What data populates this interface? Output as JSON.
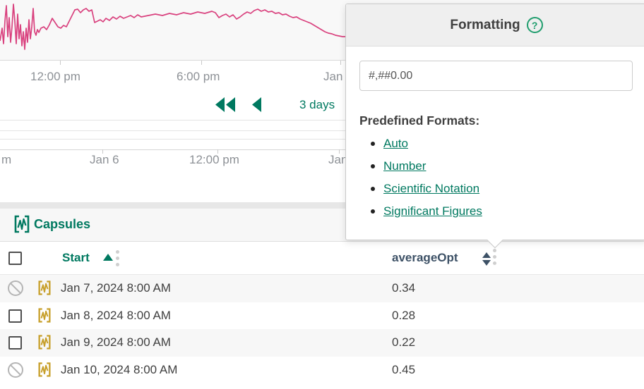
{
  "colors": {
    "trend": "#d9417e",
    "accent_green": "#007960",
    "slate": "#3d5166",
    "gold": "#c79f2a"
  },
  "trend": {
    "points": [
      [
        0,
        58
      ],
      [
        3,
        40
      ],
      [
        5,
        62
      ],
      [
        7,
        30
      ],
      [
        9,
        8
      ],
      [
        11,
        52
      ],
      [
        13,
        25
      ],
      [
        15,
        60
      ],
      [
        17,
        38
      ],
      [
        19,
        6
      ],
      [
        21,
        30
      ],
      [
        23,
        62
      ],
      [
        25,
        20
      ],
      [
        27,
        55
      ],
      [
        29,
        35
      ],
      [
        31,
        65
      ],
      [
        33,
        45
      ],
      [
        35,
        70
      ],
      [
        37,
        40
      ],
      [
        39,
        60
      ],
      [
        41,
        28
      ],
      [
        43,
        55
      ],
      [
        45,
        38
      ],
      [
        47,
        12
      ],
      [
        49,
        45
      ],
      [
        51,
        50
      ],
      [
        53,
        42
      ],
      [
        55,
        46
      ],
      [
        58,
        40
      ],
      [
        62,
        38
      ],
      [
        66,
        42
      ],
      [
        70,
        35
      ],
      [
        74,
        26
      ],
      [
        78,
        32
      ],
      [
        82,
        38
      ],
      [
        86,
        40
      ],
      [
        90,
        36
      ],
      [
        94,
        38
      ],
      [
        98,
        30
      ],
      [
        102,
        22
      ],
      [
        106,
        14
      ],
      [
        110,
        13
      ],
      [
        114,
        18
      ],
      [
        118,
        14
      ],
      [
        122,
        12
      ],
      [
        126,
        16
      ],
      [
        130,
        14
      ],
      [
        134,
        32
      ],
      [
        138,
        30
      ],
      [
        142,
        28
      ],
      [
        146,
        31
      ],
      [
        150,
        26
      ],
      [
        155,
        29
      ],
      [
        160,
        24
      ],
      [
        165,
        27
      ],
      [
        170,
        23
      ],
      [
        175,
        26
      ],
      [
        180,
        24
      ],
      [
        185,
        22
      ],
      [
        190,
        25
      ],
      [
        195,
        21
      ],
      [
        200,
        24
      ],
      [
        210,
        22
      ],
      [
        220,
        20
      ],
      [
        230,
        22
      ],
      [
        240,
        19
      ],
      [
        250,
        21
      ],
      [
        260,
        18
      ],
      [
        270,
        20
      ],
      [
        280,
        17
      ],
      [
        290,
        19
      ],
      [
        300,
        16
      ],
      [
        305,
        18
      ],
      [
        310,
        25
      ],
      [
        315,
        22
      ],
      [
        320,
        20
      ],
      [
        325,
        24
      ],
      [
        330,
        21
      ],
      [
        335,
        27
      ],
      [
        340,
        24
      ],
      [
        345,
        20
      ],
      [
        350,
        17
      ],
      [
        355,
        19
      ],
      [
        360,
        15
      ],
      [
        365,
        13
      ],
      [
        370,
        16
      ],
      [
        375,
        14
      ],
      [
        380,
        17
      ],
      [
        385,
        16
      ],
      [
        390,
        19
      ],
      [
        395,
        18
      ],
      [
        400,
        21
      ],
      [
        405,
        20
      ],
      [
        410,
        23
      ],
      [
        415,
        25
      ],
      [
        420,
        24
      ],
      [
        425,
        27
      ],
      [
        430,
        29
      ],
      [
        435,
        31
      ],
      [
        440,
        33
      ],
      [
        445,
        36
      ],
      [
        450,
        39
      ],
      [
        455,
        42
      ],
      [
        460,
        45
      ],
      [
        465,
        47
      ],
      [
        470,
        48
      ],
      [
        475,
        50
      ],
      [
        480,
        51
      ],
      [
        485,
        52
      ],
      [
        489,
        52
      ]
    ]
  },
  "axis1": {
    "labels": [
      {
        "text": "12:00 pm"
      },
      {
        "text": "6:00 pm"
      },
      {
        "text": "Jan"
      }
    ]
  },
  "nav": {
    "range_label": "3 days"
  },
  "axis2": {
    "labels": [
      {
        "text": "m"
      },
      {
        "text": "Jan 6"
      },
      {
        "text": "12:00 pm"
      },
      {
        "text": "Jan"
      }
    ]
  },
  "popup": {
    "title": "Formatting",
    "help_glyph": "?",
    "input_value": "#,##0.00",
    "predefined_heading": "Predefined Formats:",
    "options": [
      "Auto",
      "Number",
      "Scientific Notation",
      "Significant Figures"
    ]
  },
  "capsules": {
    "title": "Capsules",
    "columns": {
      "start": "Start",
      "value": "averageOpt"
    },
    "rows": [
      {
        "start": "Jan 7, 2024 8:00 AM",
        "value": "0.34"
      },
      {
        "start": "Jan 8, 2024 8:00 AM",
        "value": "0.28"
      },
      {
        "start": "Jan 9, 2024 8:00 AM",
        "value": "0.22"
      },
      {
        "start": "Jan 10, 2024 8:00 AM",
        "value": "0.45"
      }
    ]
  }
}
